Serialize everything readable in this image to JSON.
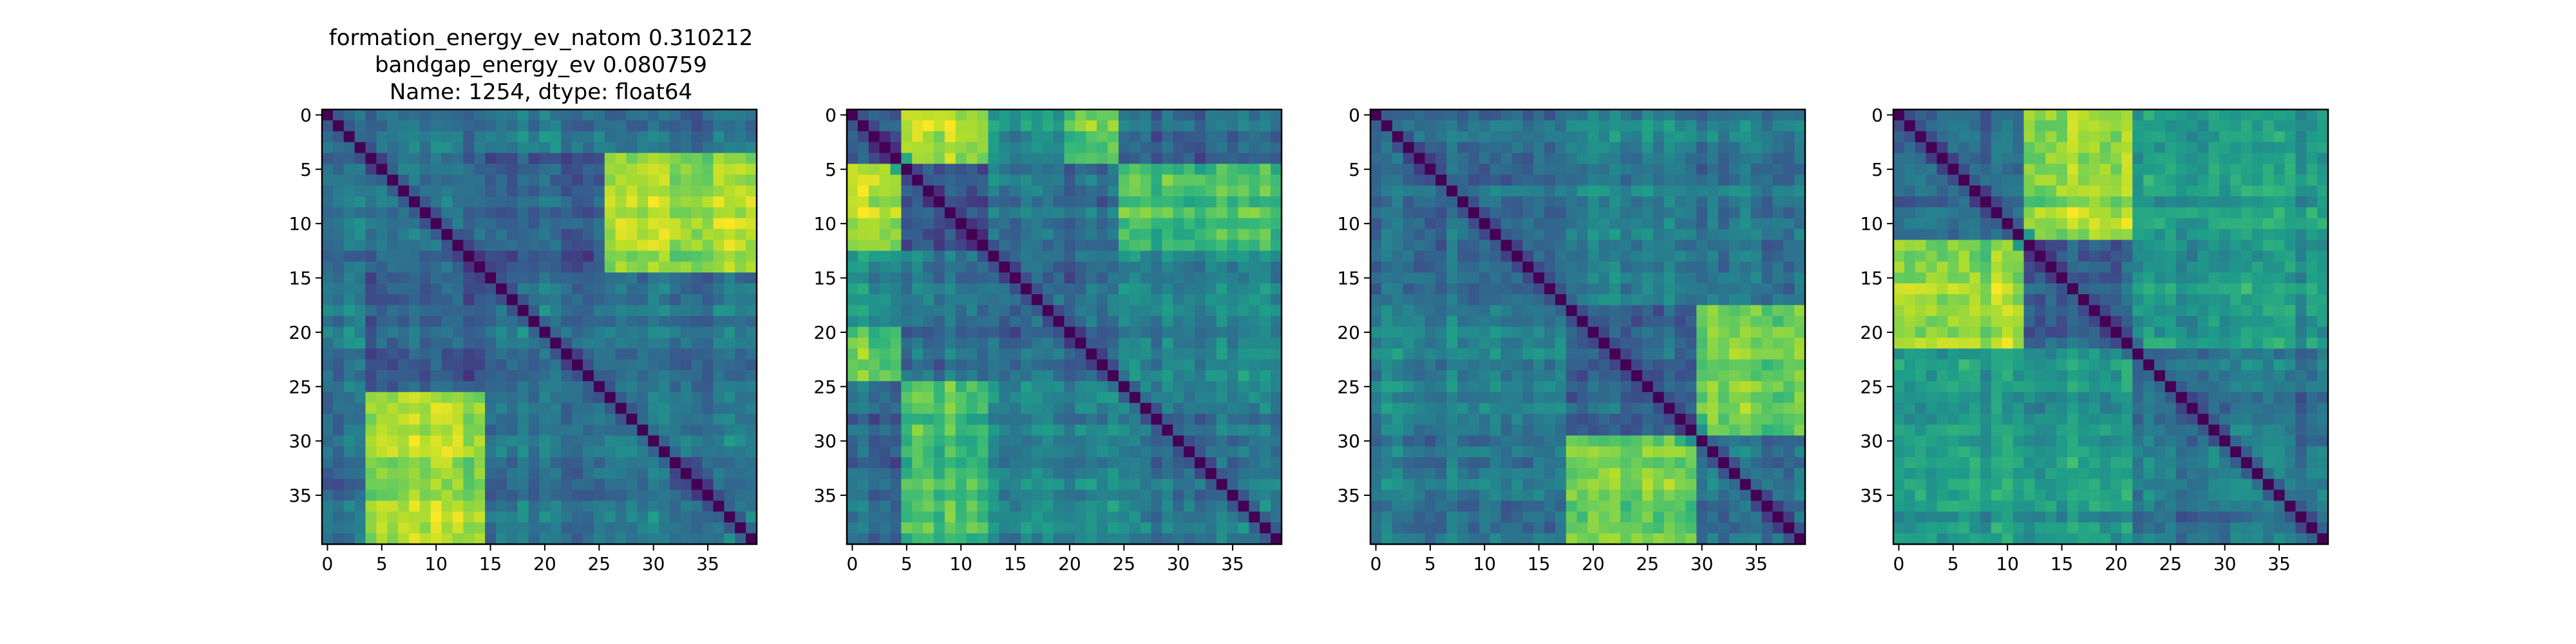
{
  "chart_data": [
    {
      "type": "heatmap",
      "title_lines": [
        "formation_energy_ev_natom    0.310212",
        "bandgap_energy_ev           0.080759",
        "Name: 1254, dtype: float64"
      ],
      "rows": 40,
      "cols": 40,
      "colormap": "viridis",
      "xticks": [
        "0",
        "5",
        "10",
        "15",
        "20",
        "25",
        "30",
        "35"
      ],
      "yticks": [
        "0",
        "5",
        "10",
        "15",
        "20",
        "25",
        "30",
        "35"
      ],
      "diagonal_value": 0,
      "groups": [
        {
          "start": 0,
          "end": 3
        },
        {
          "start": 4,
          "end": 14
        },
        {
          "start": 15,
          "end": 25
        },
        {
          "start": 26,
          "end": 39
        }
      ],
      "block_values": [
        [
          0.35,
          0.35,
          0.4,
          0.35
        ],
        [
          0.35,
          0.35,
          0.3,
          0.85
        ],
        [
          0.4,
          0.3,
          0.4,
          0.4
        ],
        [
          0.35,
          0.85,
          0.4,
          0.4
        ]
      ]
    },
    {
      "type": "heatmap",
      "title_lines": [],
      "rows": 40,
      "cols": 40,
      "colormap": "viridis",
      "xticks": [
        "0",
        "5",
        "10",
        "15",
        "20",
        "25",
        "30",
        "35"
      ],
      "yticks": [
        "0",
        "5",
        "10",
        "15",
        "20",
        "25",
        "30",
        "35"
      ],
      "diagonal_value": 0,
      "groups": [
        {
          "start": 0,
          "end": 4
        },
        {
          "start": 5,
          "end": 12
        },
        {
          "start": 13,
          "end": 19
        },
        {
          "start": 20,
          "end": 24
        },
        {
          "start": 25,
          "end": 39
        }
      ],
      "block_values": [
        [
          0.3,
          0.9,
          0.5,
          0.75,
          0.35
        ],
        [
          0.9,
          0.3,
          0.4,
          0.35,
          0.7
        ],
        [
          0.5,
          0.4,
          0.35,
          0.35,
          0.45
        ],
        [
          0.75,
          0.35,
          0.35,
          0.3,
          0.45
        ],
        [
          0.35,
          0.7,
          0.45,
          0.45,
          0.4
        ]
      ]
    },
    {
      "type": "heatmap",
      "title_lines": [],
      "rows": 40,
      "cols": 40,
      "colormap": "viridis",
      "xticks": [
        "0",
        "5",
        "10",
        "15",
        "20",
        "25",
        "30",
        "35"
      ],
      "yticks": [
        "0",
        "5",
        "10",
        "15",
        "20",
        "25",
        "30",
        "35"
      ],
      "diagonal_value": 0,
      "groups": [
        {
          "start": 0,
          "end": 17
        },
        {
          "start": 18,
          "end": 29
        },
        {
          "start": 30,
          "end": 39
        }
      ],
      "block_values": [
        [
          0.35,
          0.45,
          0.4
        ],
        [
          0.45,
          0.35,
          0.8
        ],
        [
          0.4,
          0.8,
          0.4
        ]
      ]
    },
    {
      "type": "heatmap",
      "title_lines": [],
      "rows": 40,
      "cols": 40,
      "colormap": "viridis",
      "xticks": [
        "0",
        "5",
        "10",
        "15",
        "20",
        "25",
        "30",
        "35"
      ],
      "yticks": [
        "0",
        "5",
        "10",
        "15",
        "20",
        "25",
        "30",
        "35"
      ],
      "diagonal_value": 0,
      "groups": [
        {
          "start": 0,
          "end": 11
        },
        {
          "start": 12,
          "end": 21
        },
        {
          "start": 22,
          "end": 39
        }
      ],
      "block_values": [
        [
          0.35,
          0.85,
          0.55
        ],
        [
          0.85,
          0.35,
          0.55
        ],
        [
          0.55,
          0.55,
          0.4
        ]
      ]
    }
  ]
}
